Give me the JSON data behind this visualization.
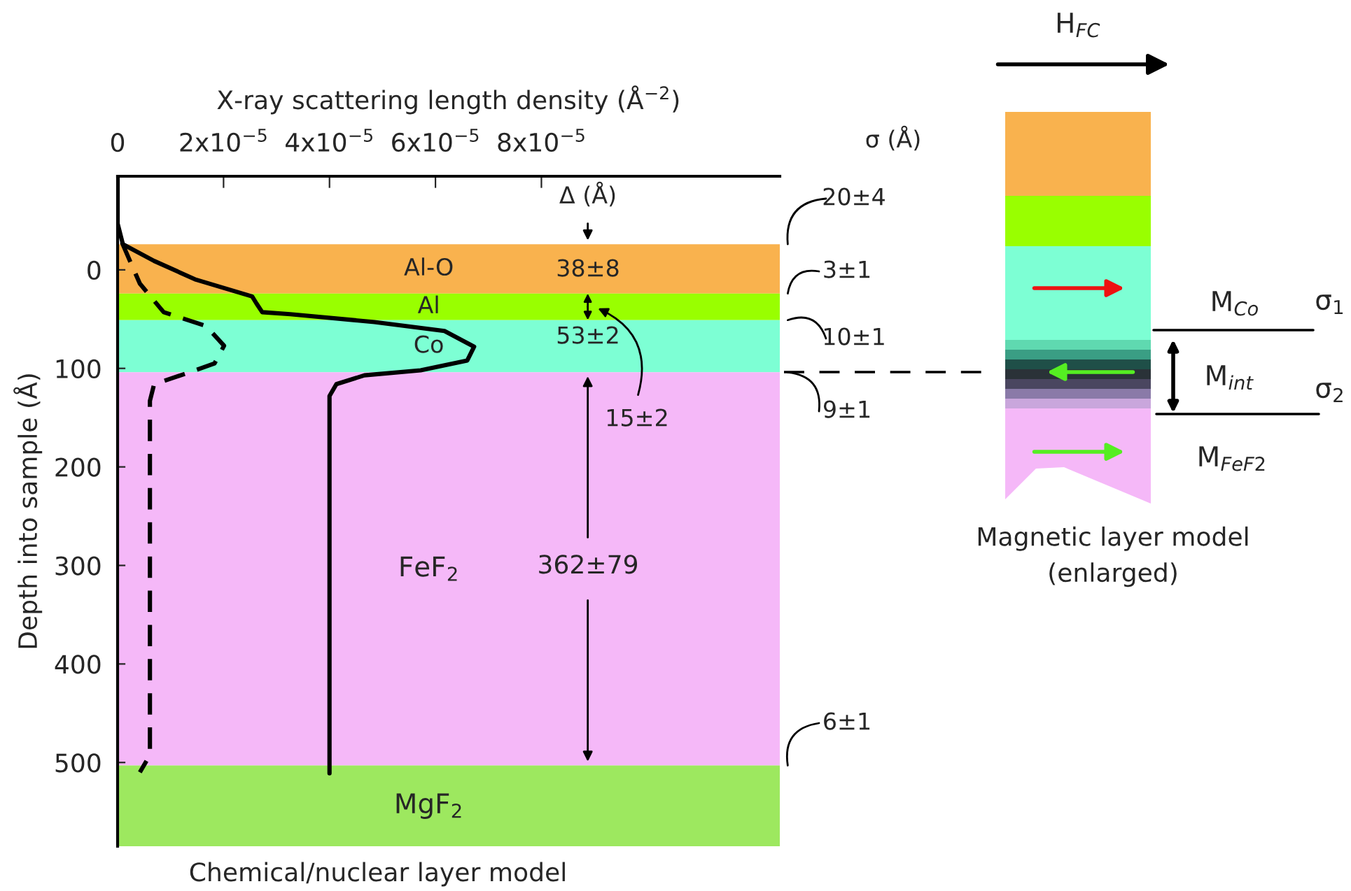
{
  "chart_data": {
    "type": "line",
    "xlabel": "X-ray scattering length density (Å$^{−2}$)",
    "ylabel": "Depth into sample (Å)",
    "xlim": [
      0,
      0.000125
    ],
    "ylim": [
      585,
      -95
    ],
    "xticks": [
      0,
      {
        "value": 2e-05,
        "label": "2x10$^{−5}$"
      },
      {
        "value": 4e-05,
        "label": "4x10$^{−5}$"
      },
      {
        "value": 6e-05,
        "label": "6x10$^{−5}$"
      },
      {
        "value": 8e-05,
        "label": "8x10$^{−5}$"
      }
    ],
    "yticks": [
      0,
      100,
      200,
      300,
      400,
      500
    ],
    "grid": false,
    "series": [
      {
        "color": "#000000",
        "line_style": "solid",
        "x": [
          0,
          0,
          1e-06,
          6.9e-06,
          1.48e-05,
          2.54e-05,
          2.62e-05,
          2.73e-05,
          3.26e-05,
          4.85e-05,
          6.17e-05,
          6.73e-05,
          6.6e-05,
          5.72e-05,
          4.66e-05,
          4.13e-05,
          4e-05,
          4e-05
        ],
        "values": [
          -95,
          -47,
          -26,
          -9,
          10,
          27,
          34,
          43,
          45,
          53,
          62,
          78,
          92,
          102,
          107,
          116,
          128,
          511
        ]
      },
      {
        "color": "#000000",
        "line_style": "dashed",
        "x": [
          8e-07,
          4.2e-06,
          8.7e-06,
          1.67e-05,
          2.01e-05,
          1.83e-05,
          1.3e-05,
          6.9e-06,
          6.1e-06,
          6.1e-06,
          5.6e-06,
          4.2e-06
        ],
        "values": [
          -28,
          14,
          43,
          57,
          77,
          95,
          105,
          116,
          133,
          490,
          497,
          510
        ]
      }
    ],
    "bands": [
      {
        "axis": "y",
        "from": -26,
        "to": 24,
        "label": "Al-O",
        "color": "#f9b24e"
      },
      {
        "axis": "y",
        "from": 24,
        "to": 51,
        "label": "Al",
        "color": "#99ff00"
      },
      {
        "axis": "y",
        "from": 51,
        "to": 104,
        "label": "Co",
        "color": "#7dffd4"
      },
      {
        "axis": "y",
        "from": 104,
        "to": 503,
        "label": "FeF$_{2}$",
        "color": "#f5b8f8"
      },
      {
        "axis": "y",
        "from": 503,
        "to": 585,
        "label": "MgF$_{2}$",
        "color": "#9de85f"
      }
    ],
    "annotations": [
      "Δ (Å)",
      "38±8",
      "53±2",
      "362±79",
      "15±2",
      "σ (Å)",
      "20±4",
      "3±1",
      "10±1",
      "9±1",
      "6±1",
      "Chemical/nuclear layer model",
      "H$_{FC}$",
      "M$_{Co}$",
      "M$_{int}$",
      "M$_{FeF2}$",
      "σ$_{1}$",
      "σ$_{2}$",
      "Magnetic layer model\n(enlarged)"
    ]
  }
}
